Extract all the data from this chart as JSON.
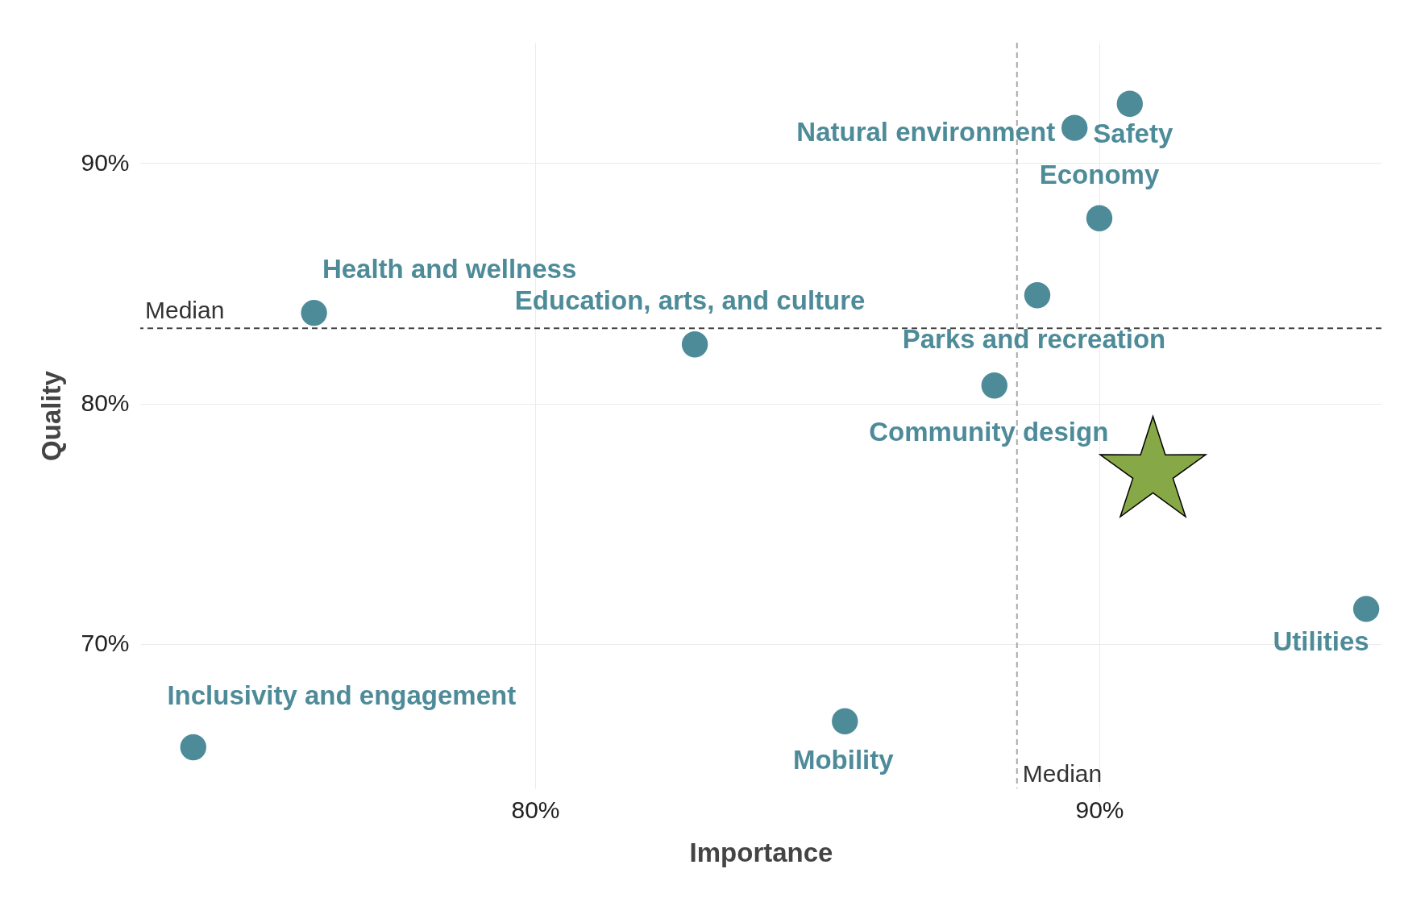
{
  "chart_data": {
    "type": "scatter",
    "xlabel": "Importance",
    "ylabel": "Quality",
    "xlim": [
      73,
      95
    ],
    "ylim": [
      64,
      95
    ],
    "xticks": [
      {
        "value": 80,
        "label": "80%"
      },
      {
        "value": 90,
        "label": "90%"
      }
    ],
    "yticks": [
      {
        "value": 70,
        "label": "70%"
      },
      {
        "value": 80,
        "label": "80%"
      },
      {
        "value": 90,
        "label": "90%"
      }
    ],
    "grid": true,
    "legend": false,
    "series": [
      {
        "name": "Safety",
        "color": "#4e8b99",
        "marker": "circle",
        "x": [
          90.54
        ],
        "values": [
          92.46
        ]
      },
      {
        "name": "Natural environment",
        "color": "#4e8b99",
        "marker": "circle",
        "x": [
          89.56
        ],
        "values": [
          91.46
        ]
      },
      {
        "name": "Economy",
        "color": "#4e8b99",
        "marker": "circle",
        "x": [
          90.0
        ],
        "values": [
          87.7
        ]
      },
      {
        "name": "Parks and recreation",
        "color": "#4e8b99",
        "marker": "circle",
        "x": [
          88.9
        ],
        "values": [
          84.5
        ]
      },
      {
        "name": "Community design",
        "color": "#4e8b99",
        "marker": "circle",
        "x": [
          88.14
        ],
        "values": [
          80.75
        ]
      },
      {
        "name": "Education, arts, and culture",
        "color": "#4e8b99",
        "marker": "circle",
        "x": [
          82.83
        ],
        "values": [
          82.46
        ]
      },
      {
        "name": "Health and wellness",
        "color": "#4e8b99",
        "marker": "circle",
        "x": [
          76.08
        ],
        "values": [
          83.77
        ]
      },
      {
        "name": "Inclusivity and engagement",
        "color": "#4e8b99",
        "marker": "circle",
        "x": [
          73.94
        ],
        "values": [
          65.71
        ]
      },
      {
        "name": "Mobility",
        "color": "#4e8b99",
        "marker": "circle",
        "x": [
          85.49
        ],
        "values": [
          66.79
        ]
      },
      {
        "name": "Utilities",
        "color": "#4e8b99",
        "marker": "circle",
        "x": [
          94.73
        ],
        "values": [
          71.46
        ]
      },
      {
        "color": "#86a846",
        "marker": "star",
        "x": [
          90.95
        ],
        "values": [
          77.16
        ]
      }
    ],
    "ref_lines": [
      {
        "axis": "x",
        "value": 88.54,
        "label": "Median",
        "color": "#aaaaaa",
        "line_style": "dashed"
      },
      {
        "axis": "y",
        "value": 83.13,
        "label": "Median",
        "color": "#444444",
        "line_style": "dashed"
      }
    ]
  }
}
